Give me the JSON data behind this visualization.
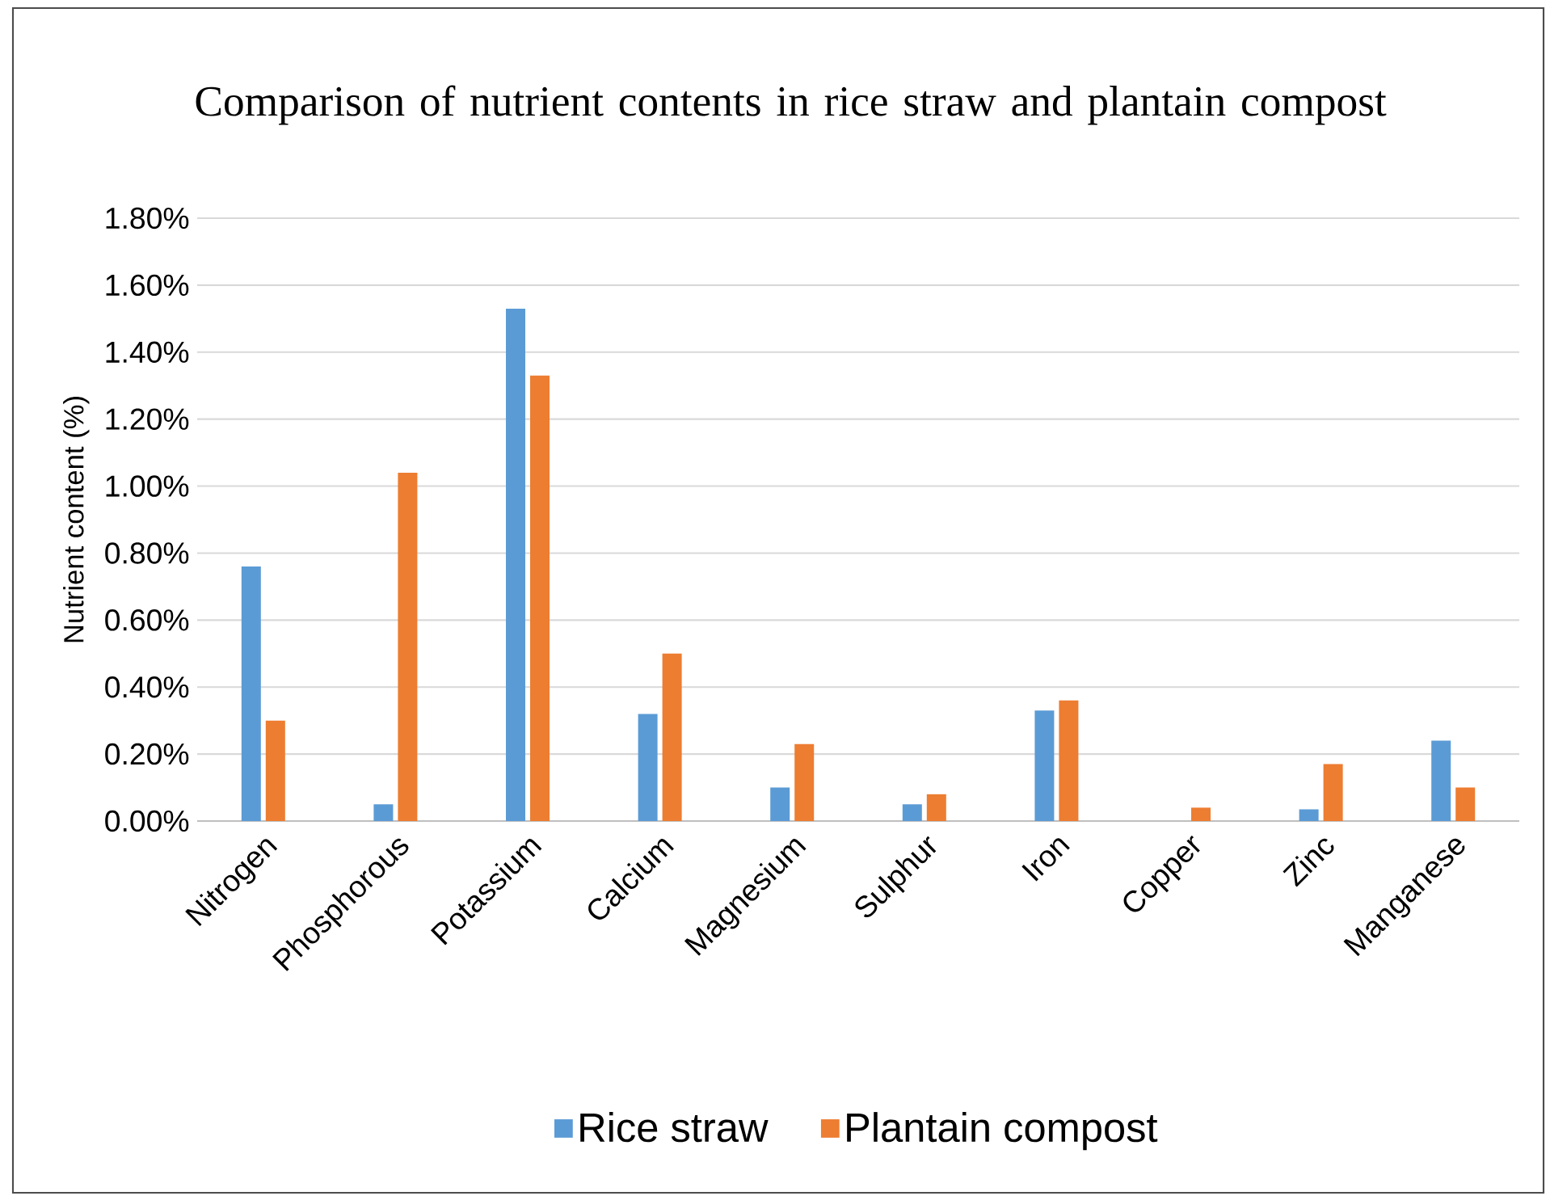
{
  "chart_data": {
    "type": "bar",
    "title": "Comparison of nutrient contents in rice straw and plantain compost",
    "ylabel": "Nutrient content (%)",
    "categories": [
      "Nitrogen",
      "Phosphorous",
      "Potassium",
      "Calcium",
      "Magnesium",
      "Sulphur",
      "Iron",
      "Copper",
      "Zinc",
      "Manganese"
    ],
    "series": [
      {
        "name": "Rice straw",
        "color": "#5b9bd5",
        "values": [
          0.76,
          0.05,
          1.53,
          0.32,
          0.1,
          0.05,
          0.33,
          0,
          0.035,
          0.24
        ]
      },
      {
        "name": "Plantain compost",
        "color": "#ed7d31",
        "values": [
          0.3,
          1.04,
          1.33,
          0.5,
          0.23,
          0.08,
          0.36,
          0.04,
          0.17,
          0.1
        ]
      }
    ],
    "ylim": [
      0,
      1.8
    ],
    "yticks": [
      {
        "value": 0,
        "label": "0.00%"
      },
      {
        "value": 0.2,
        "label": "0.20%"
      },
      {
        "value": 0.4,
        "label": "0.40%"
      },
      {
        "value": 0.6,
        "label": "0.60%"
      },
      {
        "value": 0.8,
        "label": "0.80%"
      },
      {
        "value": 1.0,
        "label": "1.00%"
      },
      {
        "value": 1.2,
        "label": "1.20%"
      },
      {
        "value": 1.4,
        "label": "1.40%"
      },
      {
        "value": 1.6,
        "label": "1.60%"
      },
      {
        "value": 1.8,
        "label": "1.80%"
      }
    ],
    "grid": "y",
    "legend": "bottom"
  }
}
